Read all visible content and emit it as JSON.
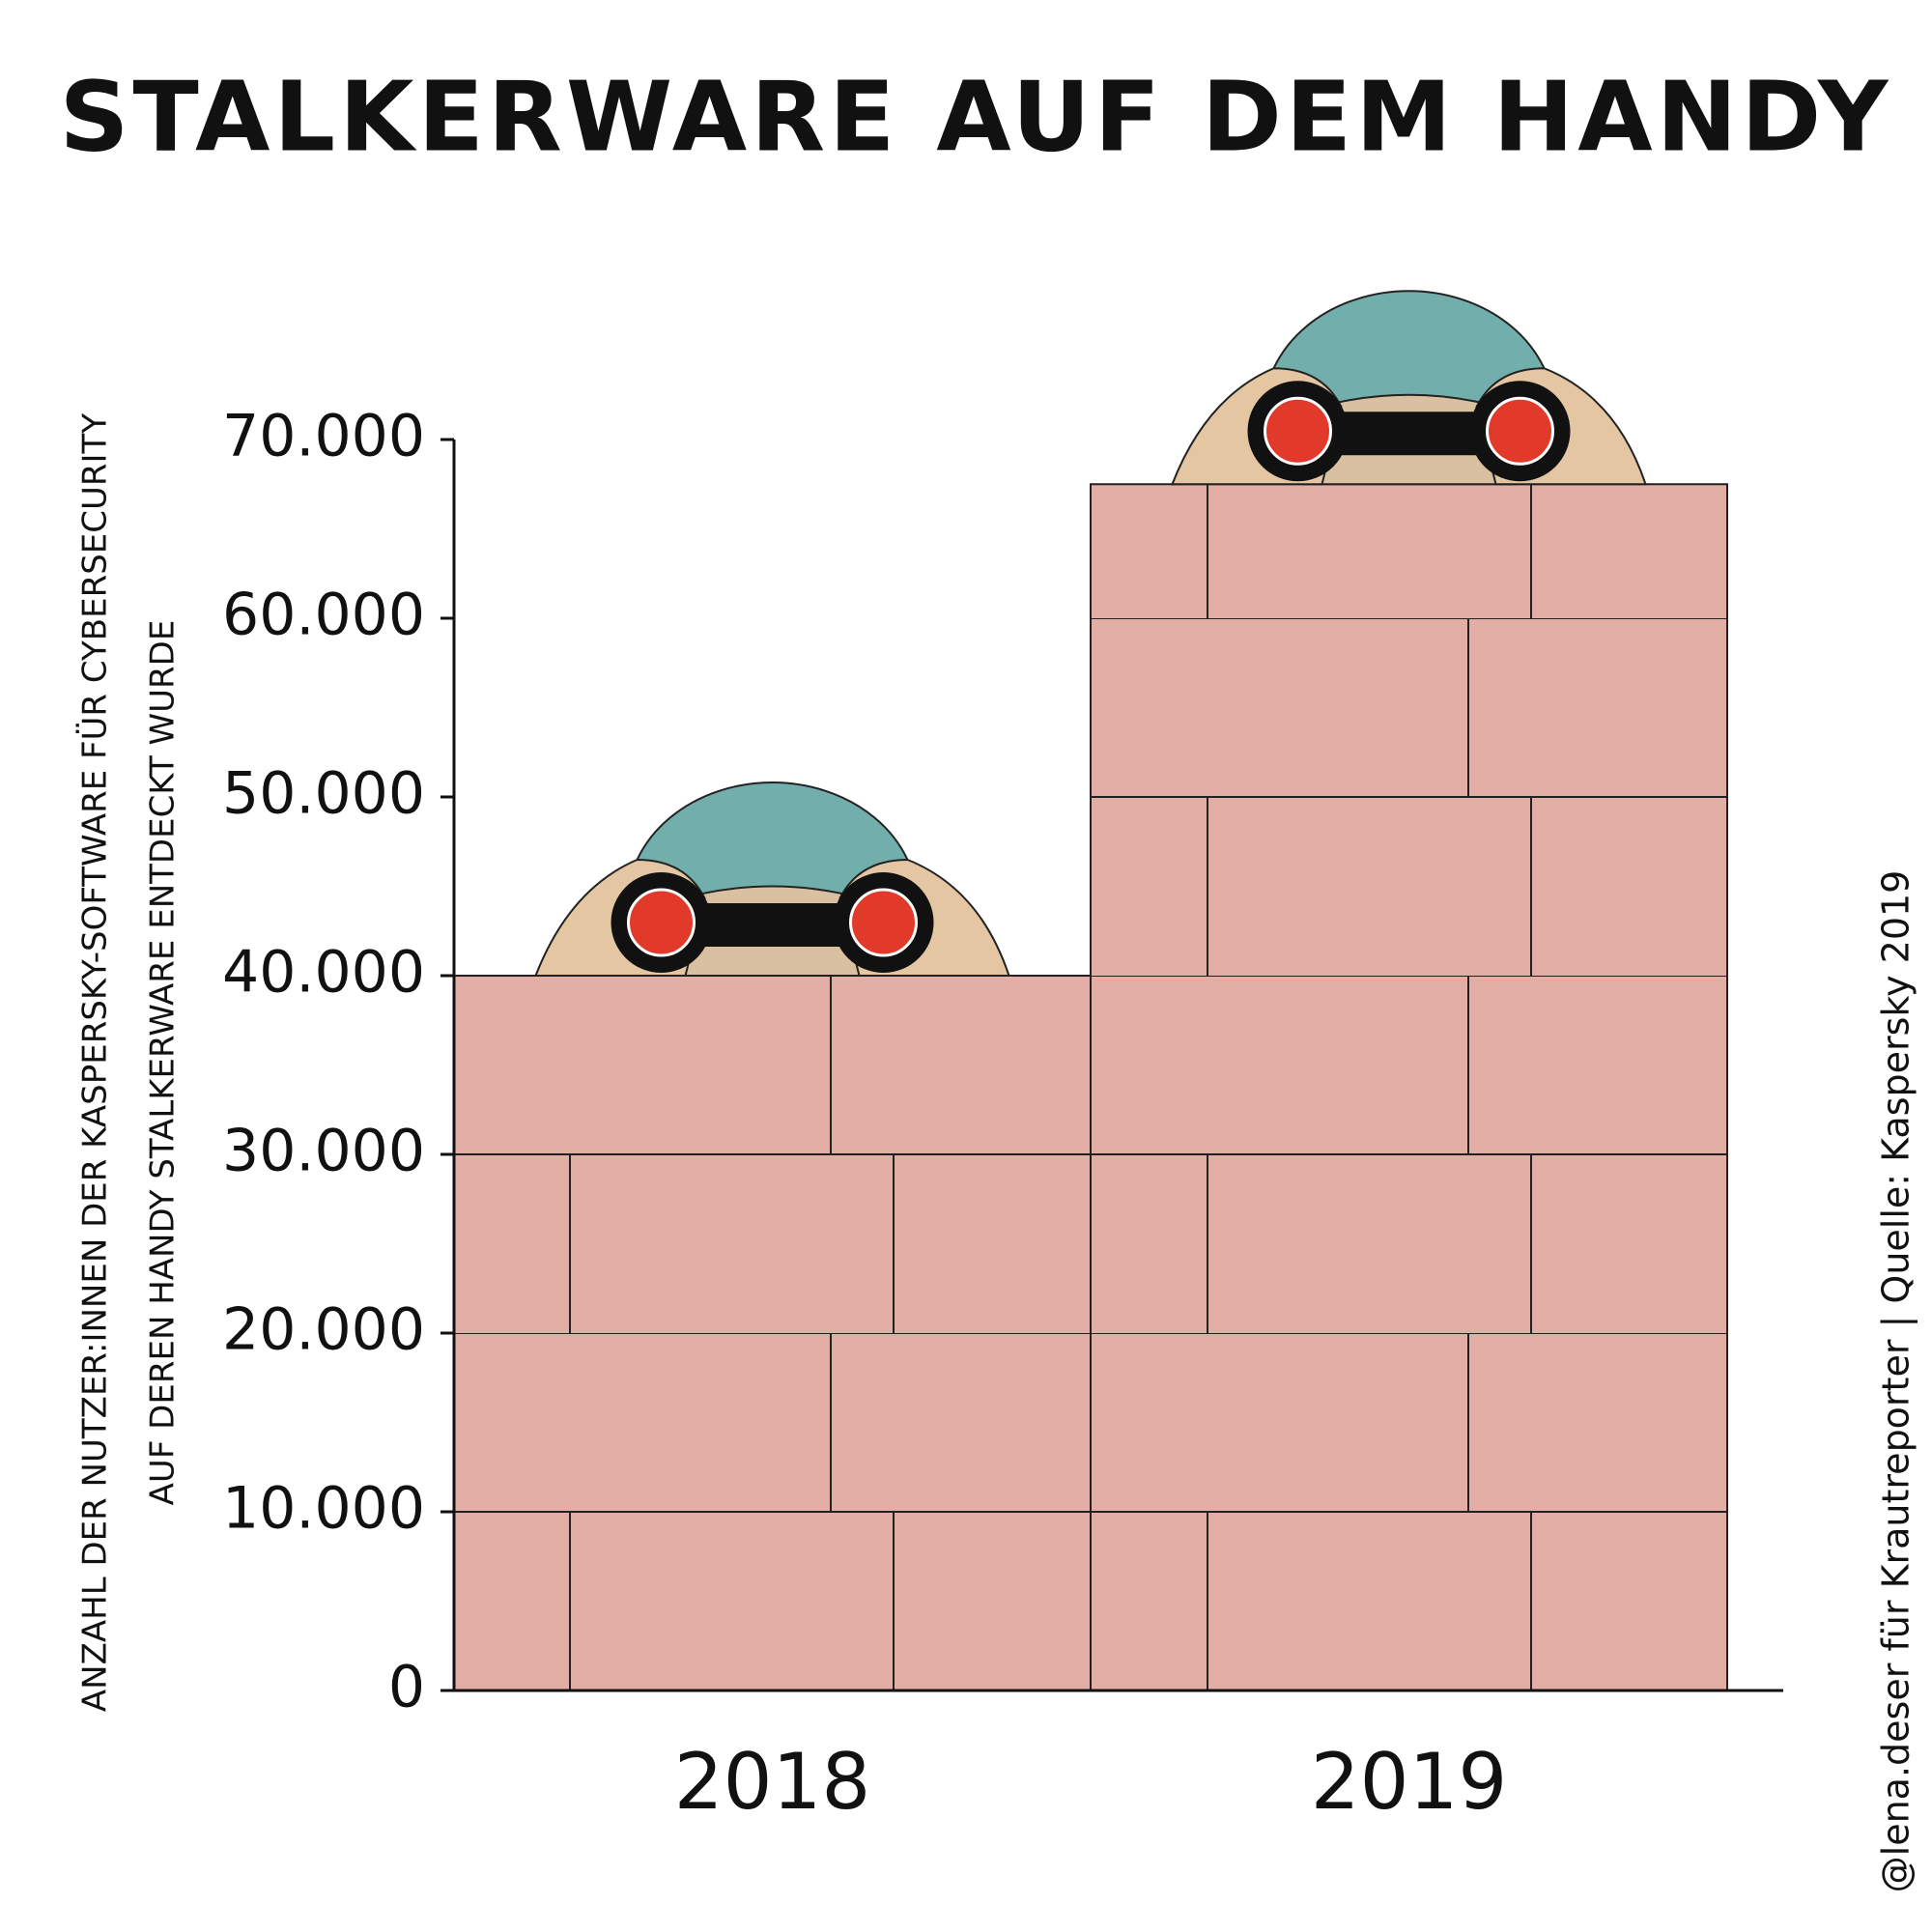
{
  "chart_data": {
    "type": "bar",
    "title": "STALKERWARE AUF DEM HANDY",
    "y_label": [
      "ANZAHL DER NUTZER:INNEN DER KASPERSKY-SOFTWARE FÜR CYBERSECURITY",
      "AUF DEREN HANDY STALKERWARE ENTDECKT WURDE"
    ],
    "credit": "@lena.deser für Krautreporter | Quelle: Kaspersky 2019",
    "categories": [
      "2018",
      "2019"
    ],
    "values": [
      40000,
      67500
    ],
    "color": "#e3aea6",
    "ylim": [
      0,
      70000
    ],
    "yticks": [
      0,
      {
        "value": 10000,
        "label": "10.000"
      },
      {
        "value": 20000,
        "label": "20.000"
      },
      {
        "value": 30000,
        "label": "30.000"
      },
      {
        "value": 40000,
        "label": "40.000"
      },
      {
        "value": 50000,
        "label": "50.000"
      },
      {
        "value": 60000,
        "label": "60.000"
      },
      {
        "value": 70000,
        "label": "70.000"
      }
    ],
    "grid": false
  }
}
